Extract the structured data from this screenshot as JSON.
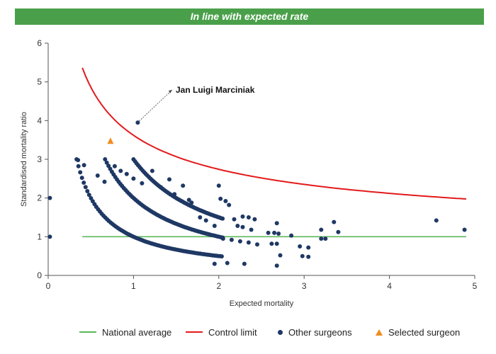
{
  "banner": {
    "text": "In line with expected rate"
  },
  "chart_data": {
    "type": "scatter",
    "title": "",
    "xlabel": "Expected mortality",
    "ylabel": "Standardised mortality ratio",
    "xlim": [
      0,
      5
    ],
    "ylim": [
      0,
      6
    ],
    "x_ticks": [
      "0",
      "1",
      "2",
      "3",
      "4",
      "5"
    ],
    "y_ticks": [
      "0",
      "1",
      "2",
      "3",
      "4",
      "5",
      "6"
    ],
    "grid": false,
    "legend_position": "bottom",
    "national_average": {
      "name": "National average",
      "value": 1,
      "x_range": [
        0.4,
        4.9
      ],
      "color": "#5cb85c"
    },
    "control_limit": {
      "name": "Control limit",
      "color": "#e31a1c"
    },
    "other_surgeons": {
      "name": "Other surgeons",
      "color": "#1f3864",
      "points": [
        [
          0.35,
          2.98
        ],
        [
          0.42,
          2.85
        ],
        [
          0.58,
          2.58
        ],
        [
          0.66,
          2.42
        ],
        [
          0.78,
          2.82
        ],
        [
          0.85,
          2.7
        ],
        [
          0.92,
          2.62
        ],
        [
          1.0,
          2.5
        ],
        [
          1.1,
          2.38
        ],
        [
          1.22,
          2.7
        ],
        [
          1.32,
          2.28
        ],
        [
          1.42,
          2.48
        ],
        [
          1.48,
          2.1
        ],
        [
          1.58,
          2.32
        ],
        [
          1.65,
          1.95
        ],
        [
          1.68,
          1.88
        ],
        [
          1.78,
          1.5
        ],
        [
          1.85,
          1.42
        ],
        [
          1.95,
          1.28
        ],
        [
          2.0,
          2.32
        ],
        [
          2.02,
          1.98
        ],
        [
          2.08,
          1.92
        ],
        [
          2.12,
          1.82
        ],
        [
          2.18,
          1.45
        ],
        [
          2.28,
          1.52
        ],
        [
          2.35,
          1.5
        ],
        [
          2.42,
          1.45
        ],
        [
          2.22,
          1.28
        ],
        [
          2.28,
          1.25
        ],
        [
          2.38,
          1.18
        ],
        [
          2.58,
          1.1
        ],
        [
          2.65,
          1.1
        ],
        [
          2.68,
          1.35
        ],
        [
          2.7,
          1.08
        ],
        [
          2.85,
          1.03
        ],
        [
          2.68,
          0.82
        ],
        [
          2.62,
          0.82
        ],
        [
          2.72,
          0.52
        ],
        [
          2.68,
          0.25
        ],
        [
          2.95,
          0.75
        ],
        [
          3.05,
          0.72
        ],
        [
          2.98,
          0.5
        ],
        [
          3.05,
          0.48
        ],
        [
          3.2,
          1.18
        ],
        [
          3.2,
          0.95
        ],
        [
          3.25,
          0.95
        ],
        [
          3.35,
          1.38
        ],
        [
          3.4,
          1.12
        ],
        [
          4.55,
          1.42
        ],
        [
          4.88,
          1.18
        ],
        [
          2.05,
          0.95
        ],
        [
          2.15,
          0.92
        ],
        [
          2.25,
          0.88
        ],
        [
          2.35,
          0.85
        ],
        [
          2.45,
          0.8
        ],
        [
          1.95,
          0.3
        ],
        [
          2.1,
          0.32
        ],
        [
          2.3,
          0.3
        ],
        [
          1.05,
          3.95
        ]
      ]
    },
    "selected_surgeon": {
      "name": "Selected surgeon",
      "x": 0.73,
      "y": 3.47,
      "color": "#f28c1e"
    },
    "annotation": {
      "text": "Jan Luigi Marciniak",
      "target_x": 1.05,
      "target_y": 3.95
    }
  }
}
